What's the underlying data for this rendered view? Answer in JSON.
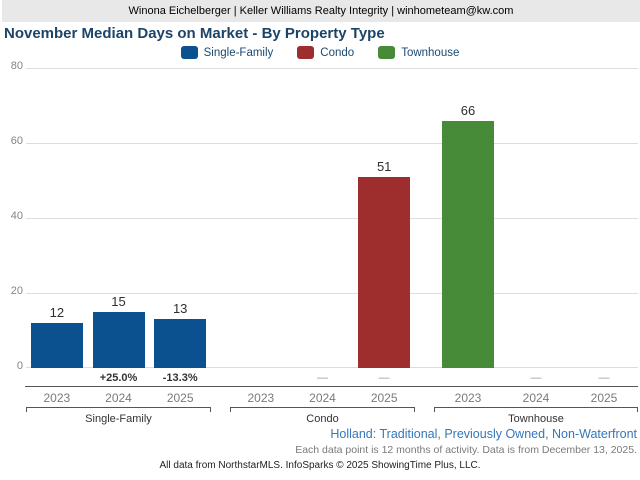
{
  "header": {
    "agent_line": "Winona Eichelberger | Keller Williams Realty Integrity | winhometeam@kw.com"
  },
  "chart_data": {
    "type": "bar",
    "title": "November Median Days on Market - By Property Type",
    "xlabel": "",
    "ylabel": "",
    "ylim": [
      0,
      80
    ],
    "yticks": [
      0,
      20,
      40,
      60,
      80
    ],
    "grid": true,
    "legend_position": "top-center",
    "categories": [
      "2023",
      "2024",
      "2025"
    ],
    "legend": [
      {
        "label": "Single-Family",
        "color": "#0b518f"
      },
      {
        "label": "Condo",
        "color": "#9e2e2e"
      },
      {
        "label": "Townhouse",
        "color": "#478a38"
      }
    ],
    "groups": [
      {
        "label": "Single-Family",
        "color": "#0b518f",
        "bars": [
          {
            "year": "2023",
            "value": 12,
            "change": ""
          },
          {
            "year": "2024",
            "value": 15,
            "change": "+25.0%"
          },
          {
            "year": "2025",
            "value": 13,
            "change": "-13.3%"
          }
        ]
      },
      {
        "label": "Condo",
        "color": "#9e2e2e",
        "bars": [
          {
            "year": "2023",
            "value": null,
            "change": ""
          },
          {
            "year": "2024",
            "value": null,
            "change": "—"
          },
          {
            "year": "2025",
            "value": 51,
            "change": "—"
          }
        ]
      },
      {
        "label": "Townhouse",
        "color": "#478a38",
        "bars": [
          {
            "year": "2023",
            "value": 66,
            "change": ""
          },
          {
            "year": "2024",
            "value": null,
            "change": "—"
          },
          {
            "year": "2025",
            "value": null,
            "change": "—"
          }
        ]
      }
    ]
  },
  "footer": {
    "filter_line": "Holland: Traditional, Previously Owned, Non-Waterfront",
    "note_line": "Each data point is 12 months of activity. Data is from December 13, 2025.",
    "copyright": "All data from NorthstarMLS. InfoSparks © 2025 ShowingTime Plus, LLC."
  }
}
